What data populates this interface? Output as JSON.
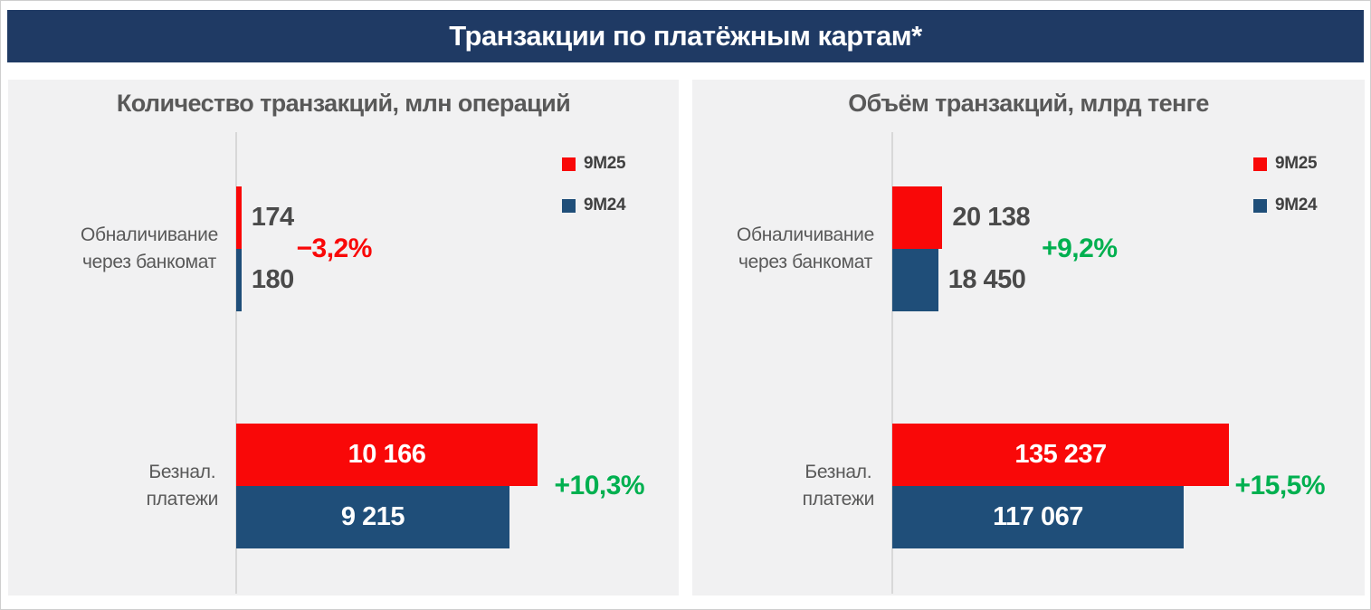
{
  "banner": {
    "title": "Транзакции по платёжным картам*"
  },
  "colors": {
    "banner_bg": "#1F3A64",
    "panel_bg": "#F1F1F2",
    "red": "#F90808",
    "blue": "#1F4E79",
    "green": "#00B050",
    "axis": "#D8D8D8",
    "gray_text": "#595959",
    "value_text": "#4A4A4A",
    "white": "#FFFFFF"
  },
  "legend": {
    "position": "top-right",
    "items": [
      {
        "label": "9М25",
        "color_key": "red"
      },
      {
        "label": "9М24",
        "color_key": "blue"
      }
    ]
  },
  "chart_data": [
    {
      "type": "bar",
      "orientation": "horizontal",
      "title": "Количество транзакций, млн операций",
      "unit": "млн операций",
      "grid": false,
      "xmax": 14500,
      "categories": [
        "Обналичивание через банкомат",
        "Безнал. платежи"
      ],
      "series": [
        {
          "name": "9М25",
          "color_key": "red",
          "values": [
            174,
            10166
          ]
        },
        {
          "name": "9М24",
          "color_key": "blue",
          "values": [
            180,
            9215
          ]
        }
      ],
      "rows": [
        {
          "category": "Обналичивание через банкомат",
          "labels_inside": false,
          "bars": [
            {
              "series": "9M25",
              "value": 174,
              "label": "174",
              "color_key": "red"
            },
            {
              "series": "9M24",
              "value": 180,
              "label": "180",
              "color_key": "blue"
            }
          ],
          "change": {
            "label": "−3,2%",
            "direction": "down",
            "color_key": "red",
            "x_pct": 14
          }
        },
        {
          "category": "Безнал. платежи",
          "labels_inside": true,
          "bars": [
            {
              "series": "9M25",
              "value": 10166,
              "label": "10 166",
              "color_key": "red"
            },
            {
              "series": "9M24",
              "value": 9215,
              "label": "9 215",
              "color_key": "blue"
            }
          ],
          "change": {
            "label": "+10,3%",
            "direction": "up",
            "color_key": "green",
            "x_pct": 74
          }
        }
      ]
    },
    {
      "type": "bar",
      "orientation": "horizontal",
      "title": "Объём транзакций, млрд тенге",
      "unit": "млрд тенге",
      "grid": false,
      "xmax": 184700,
      "categories": [
        "Обналичивание через банкомат",
        "Безнал. платежи"
      ],
      "series": [
        {
          "name": "9М25",
          "color_key": "red",
          "values": [
            20138,
            135237
          ]
        },
        {
          "name": "9М24",
          "color_key": "blue",
          "values": [
            18450,
            117067
          ]
        }
      ],
      "rows": [
        {
          "category": "Обналичивание через банкомат",
          "labels_inside": false,
          "bars": [
            {
              "series": "9M25",
              "value": 20138,
              "label": "20 138",
              "color_key": "red"
            },
            {
              "series": "9M24",
              "value": 18450,
              "label": "18 450",
              "color_key": "blue"
            }
          ],
          "change": {
            "label": "+9,2%",
            "direction": "up",
            "color_key": "green",
            "x_pct": 32.5
          }
        },
        {
          "category": "Безнал. платежи",
          "labels_inside": true,
          "bars": [
            {
              "series": "9M25",
              "value": 135237,
              "label": "135 237",
              "color_key": "red"
            },
            {
              "series": "9M24",
              "value": 117067,
              "label": "117 067",
              "color_key": "blue"
            }
          ],
          "change": {
            "label": "+15,5%",
            "direction": "up",
            "color_key": "green",
            "x_pct": 74.5
          }
        }
      ]
    }
  ]
}
